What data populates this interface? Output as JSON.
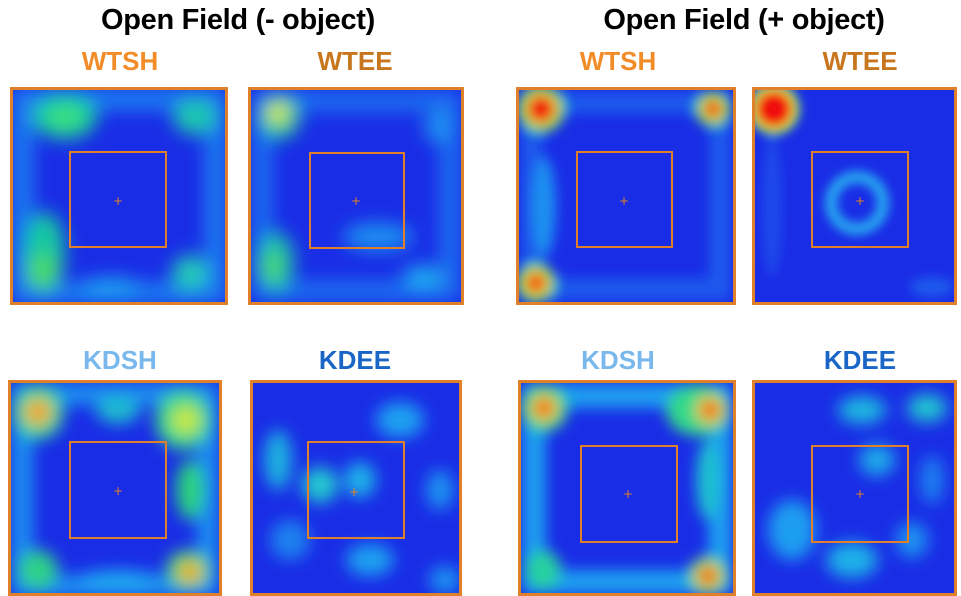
{
  "groups": [
    {
      "title": "Open Field (- object)"
    },
    {
      "title": "Open Field (+ object)"
    }
  ],
  "labels": {
    "wtsh": "WTSH",
    "wtee": "WTEE",
    "kdsh": "KDSH",
    "kdee": "KDEE"
  },
  "colors": {
    "wtsh": "#f28c28",
    "wtee": "#c8761e",
    "kdsh": "#79b8ec",
    "kdee": "#1a66c6",
    "arena_border": "#e0802a",
    "heat_background": "#1a2de6"
  }
}
